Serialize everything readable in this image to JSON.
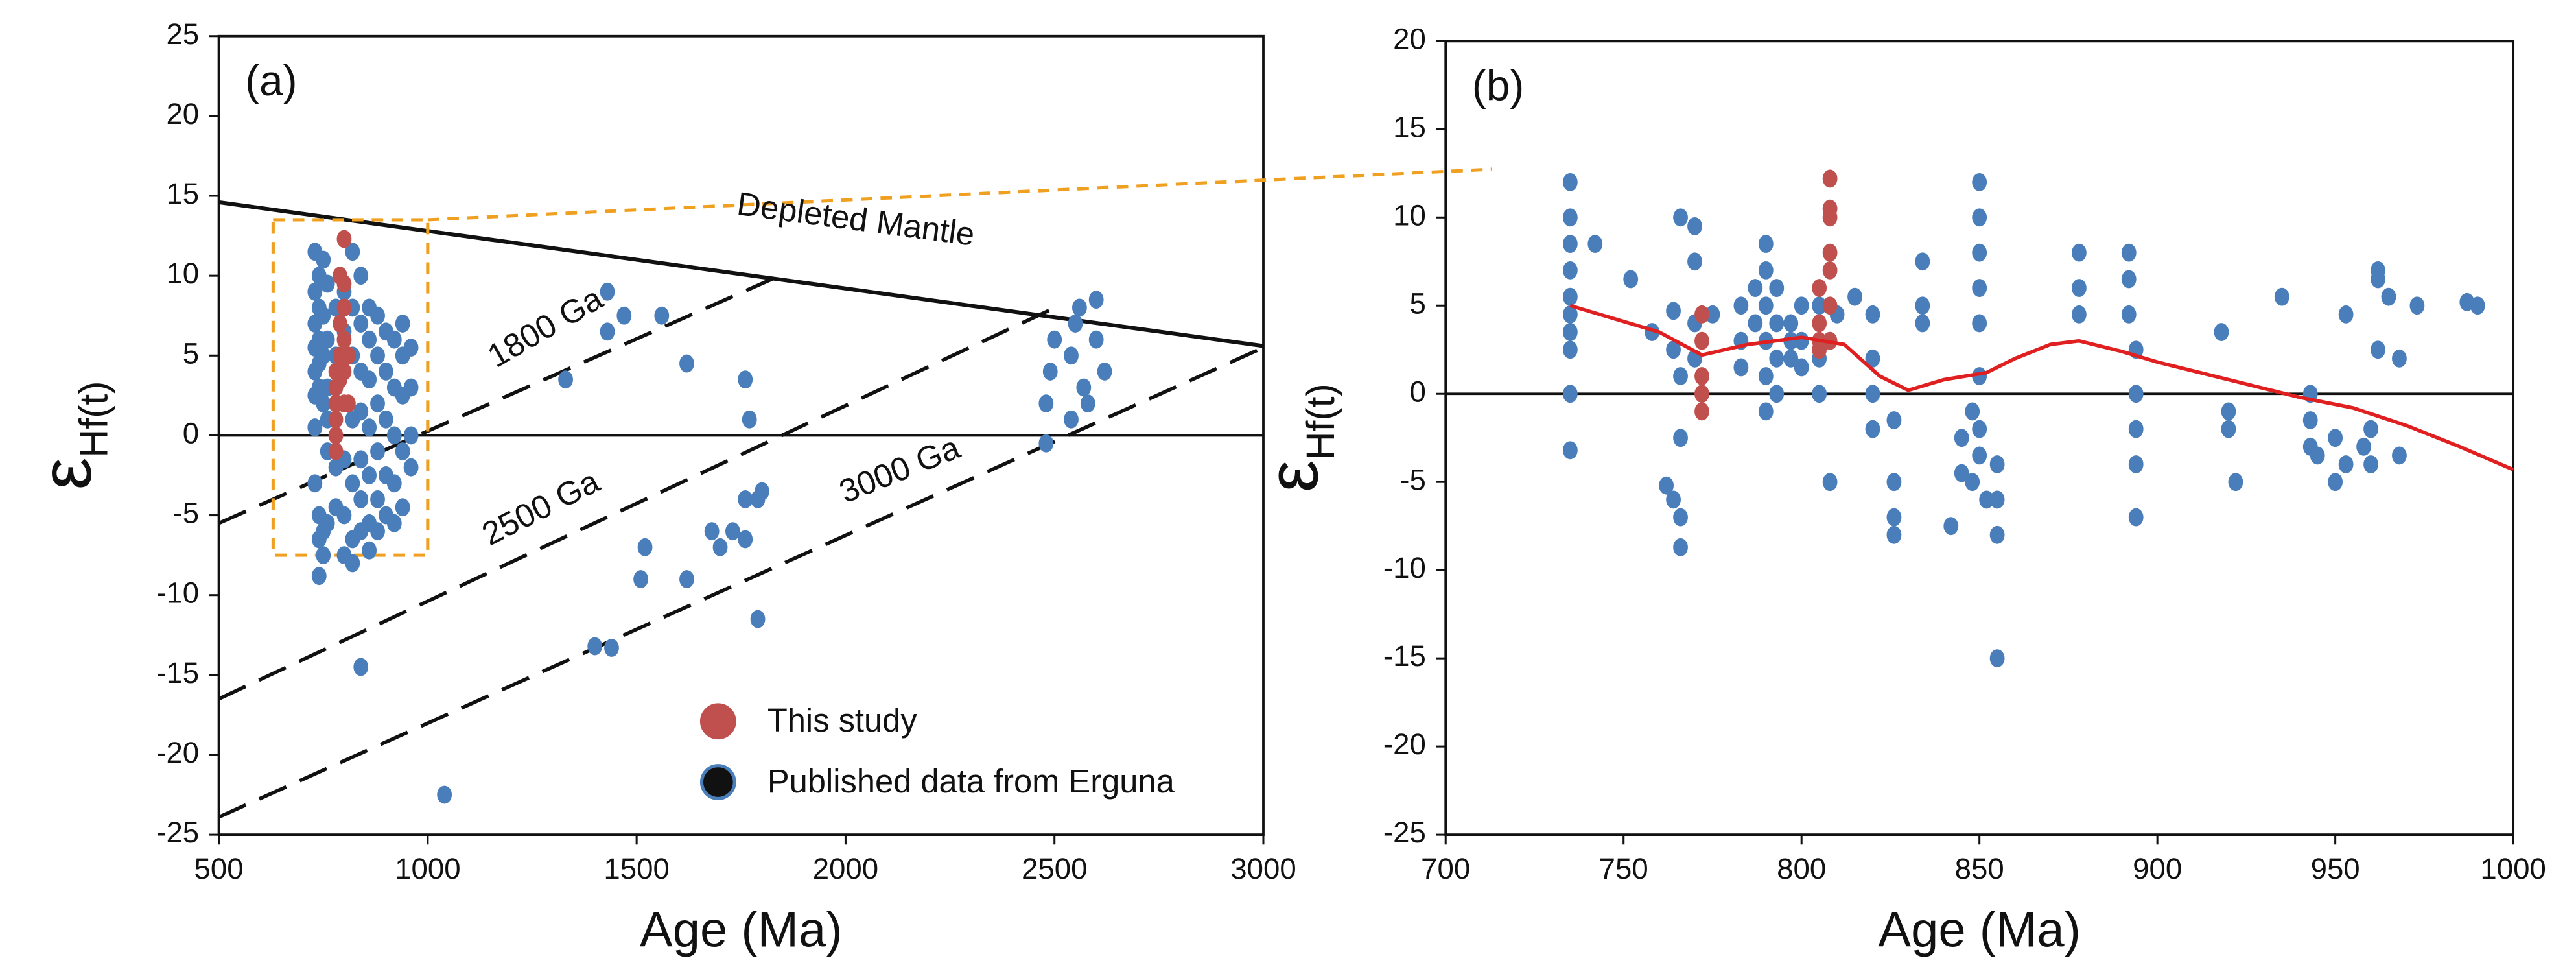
{
  "chart_data": [
    {
      "type": "scatter",
      "panel_label": "(a)",
      "xlabel": "Age (Ma)",
      "ylabel": "ε",
      "ylabel_subscript": "Hf(t)",
      "xlim": [
        500,
        3000
      ],
      "ylim": [
        -25,
        25
      ],
      "xticks": [
        500,
        1000,
        1500,
        2000,
        2500,
        3000
      ],
      "yticks": [
        -25,
        -20,
        -15,
        -10,
        -5,
        0,
        5,
        10,
        15,
        20,
        25
      ],
      "legend": "lower center",
      "lines": [
        {
          "x": [
            500,
            3000
          ],
          "y": [
            0,
            0
          ],
          "style": "solid",
          "color": "#111111"
        },
        {
          "x": [
            500,
            3000
          ],
          "y": [
            14.6,
            5.6
          ],
          "style": "solid",
          "color": "#111111"
        },
        {
          "x": [
            500,
            1825
          ],
          "y": [
            -5.5,
            9.8
          ],
          "style": "dashed",
          "color": "#111111"
        },
        {
          "x": [
            500,
            2493
          ],
          "y": [
            -16.5,
            7.9
          ],
          "style": "dashed",
          "color": "#111111"
        },
        {
          "x": [
            500,
            3000
          ],
          "y": [
            -23.9,
            5.5
          ],
          "style": "dashed",
          "color": "#111111"
        }
      ],
      "box": {
        "x": [
          630,
          1000
        ],
        "y": [
          -7.5,
          13.5
        ],
        "color": "#f0a020"
      },
      "annotations": [
        "Depleted Mantle",
        "1800 Ga",
        "2500 Ga",
        "3000 Ga"
      ],
      "series": [
        {
          "name": "Published data from Erguna",
          "color": "#4a7ebb",
          "x": [
            730,
            730,
            730,
            730,
            730,
            730,
            730,
            730,
            740,
            740,
            740,
            740,
            740,
            740,
            740,
            740,
            750,
            750,
            750,
            750,
            750,
            750,
            760,
            760,
            760,
            760,
            760,
            760,
            780,
            780,
            780,
            780,
            800,
            800,
            800,
            800,
            800,
            820,
            820,
            820,
            820,
            820,
            820,
            820,
            840,
            840,
            840,
            840,
            840,
            840,
            840,
            860,
            860,
            860,
            860,
            860,
            860,
            860,
            880,
            880,
            880,
            880,
            880,
            880,
            900,
            900,
            900,
            900,
            900,
            920,
            920,
            920,
            920,
            920,
            940,
            940,
            940,
            940,
            940,
            960,
            960,
            960,
            960,
            840,
            1040,
            1330,
            1430,
            1430,
            1470,
            1560,
            1620,
            1760,
            1770,
            1520,
            1510,
            1620,
            1730,
            1760,
            1790,
            1800,
            1760,
            1700,
            1680,
            1790,
            1400,
            1440,
            2480,
            2480,
            2490,
            2540,
            2550,
            2560,
            2600,
            2600,
            2620,
            2570,
            2540,
            2500,
            2580
          ],
          "values": [
            11.5,
            9,
            7,
            5.5,
            4,
            2.5,
            0.5,
            -3,
            10,
            8,
            6,
            4.5,
            3,
            -5,
            -6.5,
            -8.8,
            11,
            7.5,
            5,
            2,
            -6,
            -7.5,
            9.5,
            6,
            3,
            1,
            -1,
            -5.5,
            8,
            5,
            -2,
            -4.5,
            9,
            6.5,
            -1.5,
            -5,
            -7.5,
            11.5,
            8,
            5,
            1,
            -3,
            -6.5,
            -8,
            10,
            7,
            4,
            1.5,
            -1.5,
            -4,
            -6,
            8,
            6,
            3.5,
            0.5,
            -2.5,
            -5.5,
            -7.2,
            7.5,
            5,
            2,
            -1,
            -4,
            -6,
            6.5,
            4,
            1,
            -2.5,
            -5,
            6,
            3,
            0,
            -3,
            -5.5,
            7,
            5,
            2.5,
            -1,
            -4.5,
            5.5,
            3,
            0,
            -2,
            -14.5,
            -22.5,
            3.5,
            9,
            6.5,
            7.5,
            7.5,
            4.5,
            3.5,
            1,
            -7,
            -9,
            -9,
            -6,
            -4,
            -4,
            -3.5,
            -6.5,
            -7,
            -6,
            -11.5,
            -13.2,
            -13.3,
            -0.5,
            2,
            4,
            5,
            7,
            8,
            8.5,
            6,
            4,
            3,
            1,
            6,
            2
          ]
        },
        {
          "name": "This study",
          "color": "#c0504d",
          "x": [
            780,
            780,
            780,
            780,
            780,
            780,
            790,
            790,
            790,
            790,
            800,
            800,
            800,
            800,
            800,
            800,
            810,
            810
          ],
          "values": [
            4,
            3,
            2,
            1,
            0,
            -1,
            10,
            7,
            5,
            3.5,
            12.3,
            9.5,
            8,
            6,
            4,
            2,
            5,
            2
          ]
        }
      ]
    },
    {
      "type": "scatter",
      "panel_label": "(b)",
      "xlabel": "Age (Ma)",
      "ylabel": "ε",
      "ylabel_subscript": "Hf(t)",
      "xlim": [
        700,
        1000
      ],
      "ylim": [
        -25,
        20
      ],
      "xticks": [
        700,
        750,
        800,
        850,
        900,
        950,
        1000
      ],
      "yticks": [
        -25,
        -20,
        -15,
        -10,
        -5,
        0,
        5,
        10,
        15,
        20
      ],
      "lines": [
        {
          "x": [
            700,
            1000
          ],
          "y": [
            0,
            0
          ],
          "style": "solid",
          "color": "#111111"
        }
      ],
      "curve": {
        "color": "#e02020",
        "x": [
          735,
          760,
          772,
          785,
          800,
          812,
          822,
          830,
          840,
          852,
          860,
          870,
          878,
          890,
          900,
          920,
          940,
          955,
          970,
          985,
          1000
        ],
        "values": [
          5,
          3.5,
          2.2,
          2.8,
          3.2,
          2.8,
          1,
          0.2,
          0.8,
          1.2,
          2,
          2.8,
          3,
          2.4,
          1.8,
          0.8,
          -0.2,
          -0.8,
          -1.8,
          -3,
          -4.3
        ]
      },
      "series": [
        {
          "color": "#4a7ebb",
          "x": [
            735,
            735,
            735,
            735,
            735,
            735,
            735,
            735,
            735,
            735,
            742,
            752,
            758,
            762,
            764,
            764,
            764,
            766,
            766,
            766,
            766,
            766,
            770,
            770,
            770,
            770,
            775,
            783,
            783,
            783,
            787,
            787,
            790,
            790,
            790,
            790,
            790,
            790,
            793,
            793,
            793,
            793,
            797,
            797,
            797,
            800,
            800,
            800,
            805,
            805,
            805,
            808,
            810,
            815,
            820,
            820,
            820,
            820,
            826,
            826,
            826,
            826,
            834,
            834,
            834,
            842,
            845,
            845,
            848,
            848,
            850,
            850,
            850,
            850,
            850,
            850,
            850,
            850,
            852,
            855,
            855,
            855,
            855,
            878,
            878,
            878,
            892,
            892,
            892,
            894,
            894,
            894,
            894,
            894,
            918,
            920,
            920,
            922,
            935,
            943,
            943,
            943,
            945,
            950,
            950,
            953,
            953,
            958,
            960,
            960,
            962,
            962,
            962,
            965,
            968,
            968,
            973,
            987,
            990
          ],
          "values": [
            12,
            10,
            8.5,
            7,
            5.5,
            4.5,
            3.5,
            2.5,
            0,
            -3.2,
            8.5,
            6.5,
            3.5,
            -5.2,
            4.7,
            2.5,
            -6,
            10,
            -2.5,
            -7,
            -8.7,
            1,
            9.5,
            7.5,
            4,
            2,
            4.5,
            5,
            3,
            1.5,
            6,
            4,
            8.5,
            7,
            5,
            3,
            1,
            -1,
            6,
            4,
            2,
            0,
            4,
            3,
            2,
            5,
            3,
            1.5,
            5,
            2,
            0,
            -5,
            4.5,
            5.5,
            4.5,
            2,
            0,
            -2,
            -1.5,
            -5,
            -7,
            -8,
            7.5,
            5,
            4,
            -7.5,
            -2.5,
            -4.5,
            -1,
            -5,
            12,
            10,
            8,
            6,
            4,
            1,
            -2,
            -3.5,
            -6,
            -15,
            -6,
            -8,
            -4,
            8,
            6,
            4.5,
            8,
            6.5,
            4.5,
            2.5,
            0,
            -2,
            -4,
            -7,
            3.5,
            -1,
            -2,
            -5,
            5.5,
            0,
            -1.5,
            -3,
            -3.5,
            -2.5,
            -5,
            4.5,
            -4,
            -3,
            -2,
            -4,
            7,
            6.5,
            2.5,
            5.5,
            2,
            -3.5,
            5,
            5.2,
            5
          ]
        },
        {
          "color": "#c0504d",
          "x": [
            772,
            772,
            772,
            772,
            772,
            805,
            805,
            805,
            805,
            808,
            808,
            808,
            808,
            808,
            808,
            808
          ],
          "values": [
            4.5,
            3,
            1,
            0,
            -1,
            6,
            4,
            3,
            2.5,
            12.2,
            10.5,
            10,
            8,
            7,
            5,
            3
          ]
        }
      ]
    }
  ]
}
